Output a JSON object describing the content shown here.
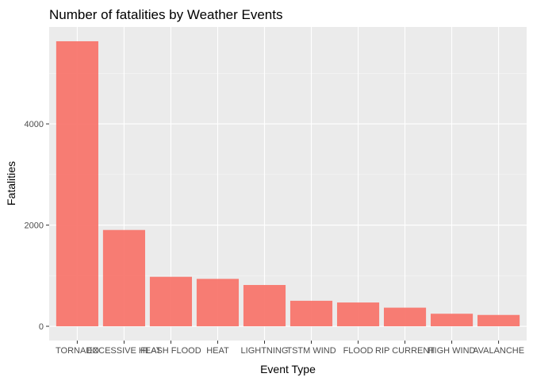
{
  "chart_data": {
    "type": "bar",
    "title": "Number of fatalities by Weather Events",
    "xlabel": "Event Type",
    "ylabel": "Fatalities",
    "categories": [
      "TORNADO",
      "EXCESSIVE HEAT",
      "FLASH FLOOD",
      "HEAT",
      "LIGHTNING",
      "TSTM WIND",
      "FLOOD",
      "RIP CURRENT",
      "HIGH WIND",
      "AVALANCHE"
    ],
    "values": [
      5633,
      1903,
      978,
      937,
      816,
      504,
      470,
      368,
      248,
      224
    ],
    "yticks": [
      0,
      2000,
      4000
    ],
    "ytick_labels": [
      "0",
      "2000",
      "4000"
    ],
    "ylim": [
      -282,
      5915
    ],
    "grid": true,
    "legend": "none",
    "colors": {
      "bar": "#F8766D",
      "panel": "#EBEBEB",
      "grid_major": "#FFFFFF",
      "tick_text": "#4D4D4D",
      "title_text": "#000000"
    }
  }
}
